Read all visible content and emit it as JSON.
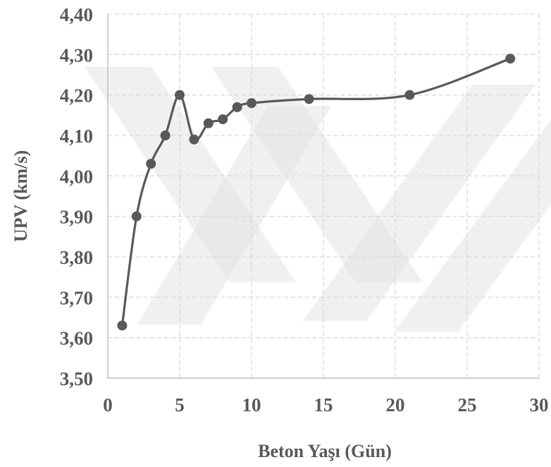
{
  "chart_data": {
    "type": "line",
    "smooth": true,
    "markers": true,
    "xlabel": "Beton Yaşı (Gün)",
    "ylabel": "UPV (km/s)",
    "xlim": [
      0,
      30
    ],
    "ylim": [
      3.5,
      4.4
    ],
    "xticks": [
      "0",
      "5",
      "10",
      "15",
      "20",
      "25",
      "30"
    ],
    "yticks": [
      "3,50",
      "3,60",
      "3,70",
      "3,80",
      "3,90",
      "4,00",
      "4,10",
      "4,20",
      "4,30",
      "4,40"
    ],
    "grid": true,
    "legend": "none",
    "series_color": "#595959",
    "series": [
      {
        "x": [
          1,
          2,
          3,
          4,
          5,
          6,
          7,
          8,
          9,
          10,
          14,
          21,
          28
        ],
        "y": [
          3.63,
          3.9,
          4.03,
          4.1,
          4.2,
          4.09,
          4.13,
          4.14,
          4.17,
          4.18,
          4.19,
          4.2,
          4.29
        ]
      }
    ]
  }
}
